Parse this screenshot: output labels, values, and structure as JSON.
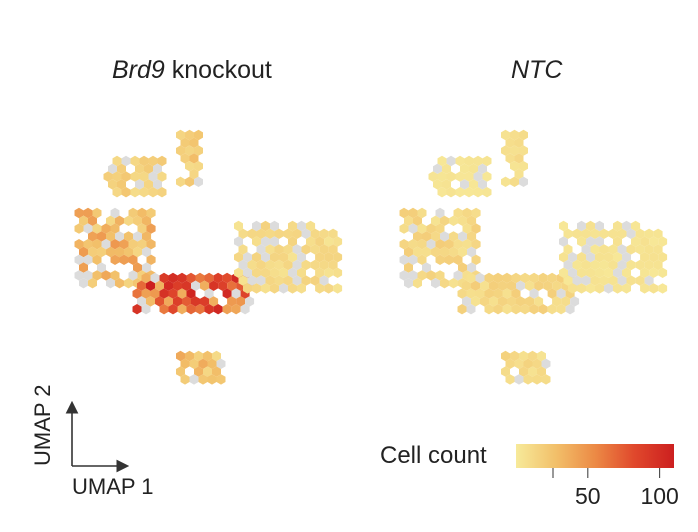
{
  "chart_data": {
    "type": "heatmap",
    "subtype": "hexbin UMAP embedding",
    "panels": [
      {
        "title_italic": "Brd9",
        "title_rest": " knockout",
        "clusters": [
          {
            "label": "top-left cluster",
            "x": [
              -6,
              -2
            ],
            "y": [
              5,
              8
            ],
            "level": 15
          },
          {
            "label": "top spike",
            "x": [
              -1,
              0.5
            ],
            "y": [
              6,
              10
            ],
            "level": 20
          },
          {
            "label": "left arm",
            "x": [
              -8,
              -3
            ],
            "y": [
              -2,
              4
            ],
            "level": 30
          },
          {
            "label": "central band",
            "x": [
              -4,
              4
            ],
            "y": [
              -4,
              -1
            ],
            "level": 70
          },
          {
            "label": "right branch",
            "x": [
              3,
              10
            ],
            "y": [
              -2,
              3
            ],
            "level": 10
          },
          {
            "label": "bottom cluster",
            "x": [
              -1,
              2
            ],
            "y": [
              -9,
              -7
            ],
            "level": 25
          }
        ]
      },
      {
        "title": "NTC",
        "clusters": [
          {
            "label": "top-left cluster",
            "x": [
              -6,
              -2
            ],
            "y": [
              5,
              8
            ],
            "level": 3
          },
          {
            "label": "top spike",
            "x": [
              -1,
              0.5
            ],
            "y": [
              6,
              10
            ],
            "level": 8
          },
          {
            "label": "left arm",
            "x": [
              -8,
              -3
            ],
            "y": [
              -2,
              4
            ],
            "level": 12
          },
          {
            "label": "central band",
            "x": [
              -4,
              4
            ],
            "y": [
              -4,
              -1
            ],
            "level": 12
          },
          {
            "label": "right branch",
            "x": [
              3,
              10
            ],
            "y": [
              -2,
              3
            ],
            "level": 4
          },
          {
            "label": "bottom cluster",
            "x": [
              -1,
              2
            ],
            "y": [
              -9,
              -7
            ],
            "level": 10
          }
        ]
      }
    ],
    "xlabel": "UMAP 1",
    "ylabel": "UMAP 2",
    "colorbar": {
      "title": "Cell count",
      "range": [
        0,
        110
      ],
      "ticks": [
        50,
        100
      ],
      "colors": [
        "#f7ea9a",
        "#f2c06a",
        "#ec8a45",
        "#e0482c",
        "#cc1f1f"
      ],
      "empty_color": "#dcdcdc"
    }
  }
}
